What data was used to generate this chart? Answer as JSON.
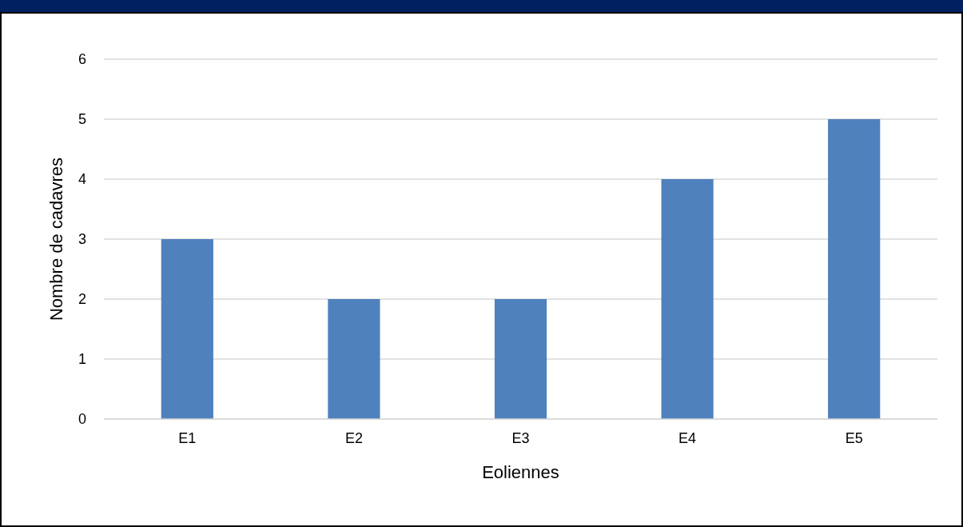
{
  "chart_data": {
    "type": "bar",
    "xlabel": "Eoliennes",
    "ylabel": "Nombre de cadavres",
    "categories": [
      "E1",
      "E2",
      "E3",
      "E4",
      "E5"
    ],
    "values": [
      3,
      2,
      2,
      4,
      5
    ],
    "color": "#4f81bd",
    "ylim": [
      0,
      6
    ],
    "yticks": [
      0,
      1,
      2,
      3,
      4,
      5,
      6
    ],
    "grid": "y"
  }
}
